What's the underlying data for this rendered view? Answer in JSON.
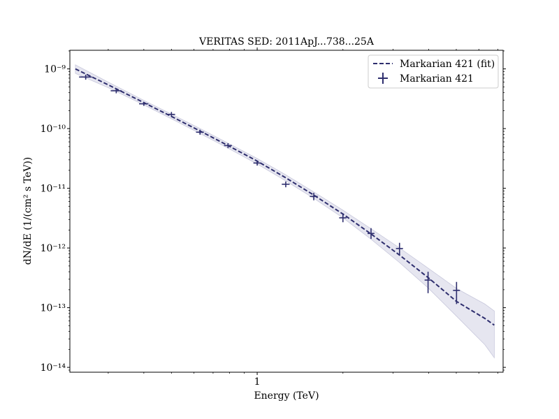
{
  "chart_data": {
    "type": "scatter",
    "title": "VERITAS SED: 2011ApJ...738...25A",
    "xlabel": "Energy (TeV)",
    "ylabel": "dN/dE (1/(cm² s TeV))",
    "x_scale": "log",
    "y_scale": "log",
    "xlim": [
      0.22,
      7.3
    ],
    "ylim": [
      8.3e-15,
      2.05e-09
    ],
    "x_ticks": [
      {
        "value": 1,
        "label": "1"
      }
    ],
    "y_ticks": [
      {
        "value": 1e-09,
        "label": "10⁻⁹"
      },
      {
        "value": 1e-10,
        "label": "10⁻¹⁰"
      },
      {
        "value": 1e-11,
        "label": "10⁻¹¹"
      },
      {
        "value": 1e-12,
        "label": "10⁻¹²"
      },
      {
        "value": 1e-13,
        "label": "10⁻¹³"
      },
      {
        "value": 1e-14,
        "label": "10⁻¹⁴"
      }
    ],
    "legend": {
      "placement": "top-right",
      "entries": [
        {
          "label": "Markarian 421 (fit)",
          "style": "dashed-line"
        },
        {
          "label": "Markarian 421",
          "style": "errorbar-marker"
        }
      ]
    },
    "colors": {
      "series": "#2e2e6e",
      "band": "#e6e6f0",
      "band_edge": "#c8c8dc"
    },
    "series": [
      {
        "name": "Markarian 421",
        "kind": "data",
        "points": [
          {
            "x": 0.25,
            "y": 7.3e-10,
            "ylo": 6.6e-10,
            "yhi": 8e-10,
            "xlo": 0.237,
            "xhi": 0.263
          },
          {
            "x": 0.32,
            "y": 4.3e-10,
            "ylo": 3.9e-10,
            "yhi": 4.7e-10,
            "xlo": 0.306,
            "xhi": 0.334
          },
          {
            "x": 0.4,
            "y": 2.6e-10,
            "ylo": 2.4e-10,
            "yhi": 2.8e-10,
            "xlo": 0.385,
            "xhi": 0.415
          },
          {
            "x": 0.5,
            "y": 1.73e-10,
            "ylo": 1.57e-10,
            "yhi": 1.9e-10,
            "xlo": 0.485,
            "xhi": 0.515
          },
          {
            "x": 0.63,
            "y": 8.7e-11,
            "ylo": 7.9e-11,
            "yhi": 9.6e-11,
            "xlo": 0.61,
            "xhi": 0.65
          },
          {
            "x": 0.79,
            "y": 5.2e-11,
            "ylo": 4.7e-11,
            "yhi": 5.7e-11,
            "xlo": 0.765,
            "xhi": 0.815
          },
          {
            "x": 1.0,
            "y": 2.65e-11,
            "ylo": 2.4e-11,
            "yhi": 2.9e-11,
            "xlo": 0.97,
            "xhi": 1.03
          },
          {
            "x": 1.26,
            "y": 1.17e-11,
            "ylo": 1.04e-11,
            "yhi": 1.3e-11,
            "xlo": 1.22,
            "xhi": 1.3
          },
          {
            "x": 1.58,
            "y": 7.3e-12,
            "ylo": 6.3e-12,
            "yhi": 8.4e-12,
            "xlo": 1.53,
            "xhi": 1.63
          },
          {
            "x": 2.0,
            "y": 3.2e-12,
            "ylo": 2.7e-12,
            "yhi": 3.8e-12,
            "xlo": 1.94,
            "xhi": 2.06
          },
          {
            "x": 2.51,
            "y": 1.75e-12,
            "ylo": 1.42e-12,
            "yhi": 2.15e-12,
            "xlo": 2.44,
            "xhi": 2.58
          },
          {
            "x": 3.16,
            "y": 9.8e-13,
            "ylo": 7.6e-13,
            "yhi": 1.22e-12,
            "xlo": 3.07,
            "xhi": 3.25
          },
          {
            "x": 3.98,
            "y": 2.9e-13,
            "ylo": 1.75e-13,
            "yhi": 4e-13,
            "xlo": 3.87,
            "xhi": 4.09
          },
          {
            "x": 5.01,
            "y": 1.95e-13,
            "ylo": 1.15e-13,
            "yhi": 2.7e-13,
            "xlo": 4.87,
            "xhi": 5.15
          }
        ]
      },
      {
        "name": "Markarian 421 (fit)",
        "kind": "fit",
        "x": [
          0.23,
          0.3,
          0.4,
          0.5,
          0.63,
          0.79,
          1.0,
          1.26,
          1.58,
          2.0,
          2.51,
          3.16,
          3.98,
          5.01,
          6.3,
          6.8
        ],
        "y": [
          1e-09,
          5.4e-10,
          2.73e-10,
          1.6e-10,
          9.1e-11,
          5.2e-11,
          2.85e-11,
          1.5e-11,
          7.7e-12,
          3.7e-12,
          1.72e-12,
          7.6e-13,
          3.2e-13,
          1.27e-13,
          6.6e-14,
          5.1e-14
        ],
        "band_lo": [
          8.4e-10,
          4.85e-10,
          2.5e-10,
          1.46e-10,
          8.3e-11,
          4.7e-11,
          2.55e-11,
          1.33e-11,
          6.8e-12,
          3.2e-12,
          1.4e-12,
          5.7e-13,
          2.15e-13,
          7.2e-14,
          2.4e-14,
          1.45e-14
        ],
        "band_hi": [
          1.17e-09,
          6e-10,
          2.97e-10,
          1.75e-10,
          1e-10,
          5.7e-11,
          3.15e-11,
          1.68e-11,
          8.7e-12,
          4.3e-12,
          2.1e-12,
          1e-12,
          4.6e-13,
          2.1e-13,
          1.15e-13,
          8.8e-14
        ]
      }
    ]
  }
}
